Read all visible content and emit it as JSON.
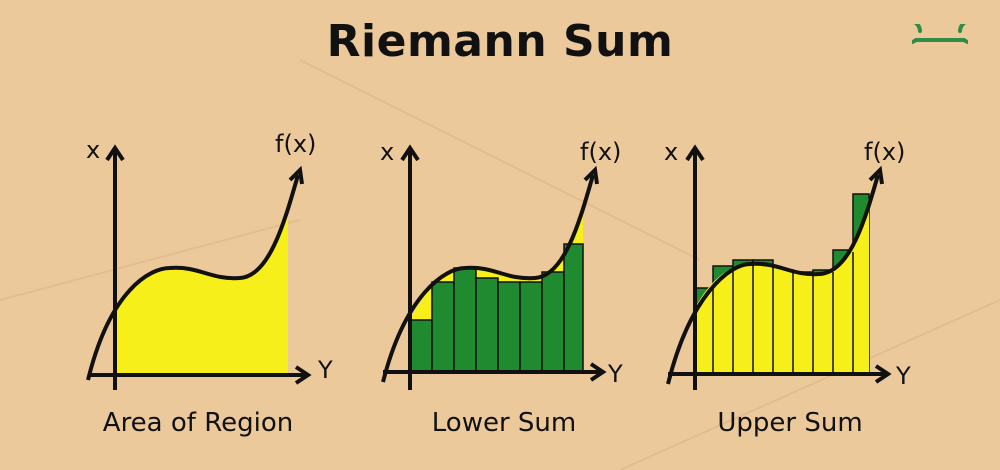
{
  "title": "Riemann Sum",
  "logo_icon": "geeksforgeeks-logo-icon",
  "colors": {
    "background": "#ecc99b",
    "fill_yellow": "#f7ef1a",
    "fill_green": "#1f8a2f",
    "logo_green": "#2f8d46",
    "stroke": "#111111"
  },
  "panels": [
    {
      "caption": "Area of Region",
      "x_label": "x",
      "y_label": "Y",
      "f_label": "f(x)"
    },
    {
      "caption": "Lower Sum",
      "x_label": "x",
      "y_label": "Y",
      "f_label": "f(x)"
    },
    {
      "caption": "Upper Sum",
      "x_label": "x",
      "y_label": "Y",
      "f_label": "f(x)"
    }
  ]
}
